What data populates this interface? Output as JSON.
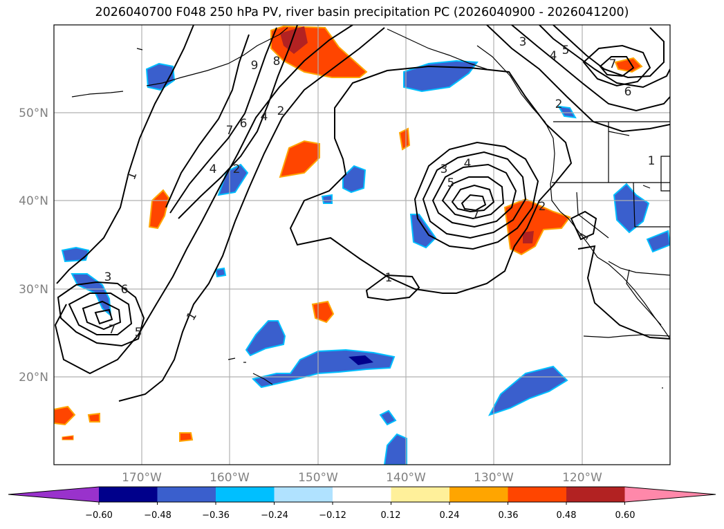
{
  "title": "2026040700 F048 250 hPa PV, river basin precipitation PC (2026040900 - 2026041200)",
  "map": {
    "projection": "cylindrical",
    "lon_range": [
      -180,
      -110
    ],
    "lat_range": [
      10,
      60
    ],
    "gridlines": true,
    "lat_ticks": [
      "20°N",
      "30°N",
      "40°N",
      "50°N"
    ],
    "lon_ticks": [
      "170°W",
      "160°W",
      "150°W",
      "140°W",
      "130°W",
      "120°W"
    ],
    "pv_contour_labels": [
      "1",
      "1",
      "1",
      "1",
      "1",
      "2",
      "2",
      "2",
      "2",
      "3",
      "3",
      "3",
      "4",
      "4",
      "4",
      "4",
      "5",
      "5",
      "5",
      "6",
      "6",
      "6",
      "7",
      "7",
      "7",
      "7",
      "8",
      "9"
    ]
  },
  "colorbar": {
    "ticks": [
      "−0.60",
      "−0.48",
      "−0.36",
      "−0.24",
      "−0.12",
      "0.12",
      "0.24",
      "0.36",
      "0.48",
      "0.60"
    ],
    "colors": [
      "#9932cc",
      "#00008b",
      "#3a5fcd",
      "#00bfff",
      "#b0e2ff",
      "#ffffff",
      "#fff09a",
      "#ffa500",
      "#ff4500",
      "#b22222",
      "#ff88aa"
    ],
    "extend": "both"
  }
}
